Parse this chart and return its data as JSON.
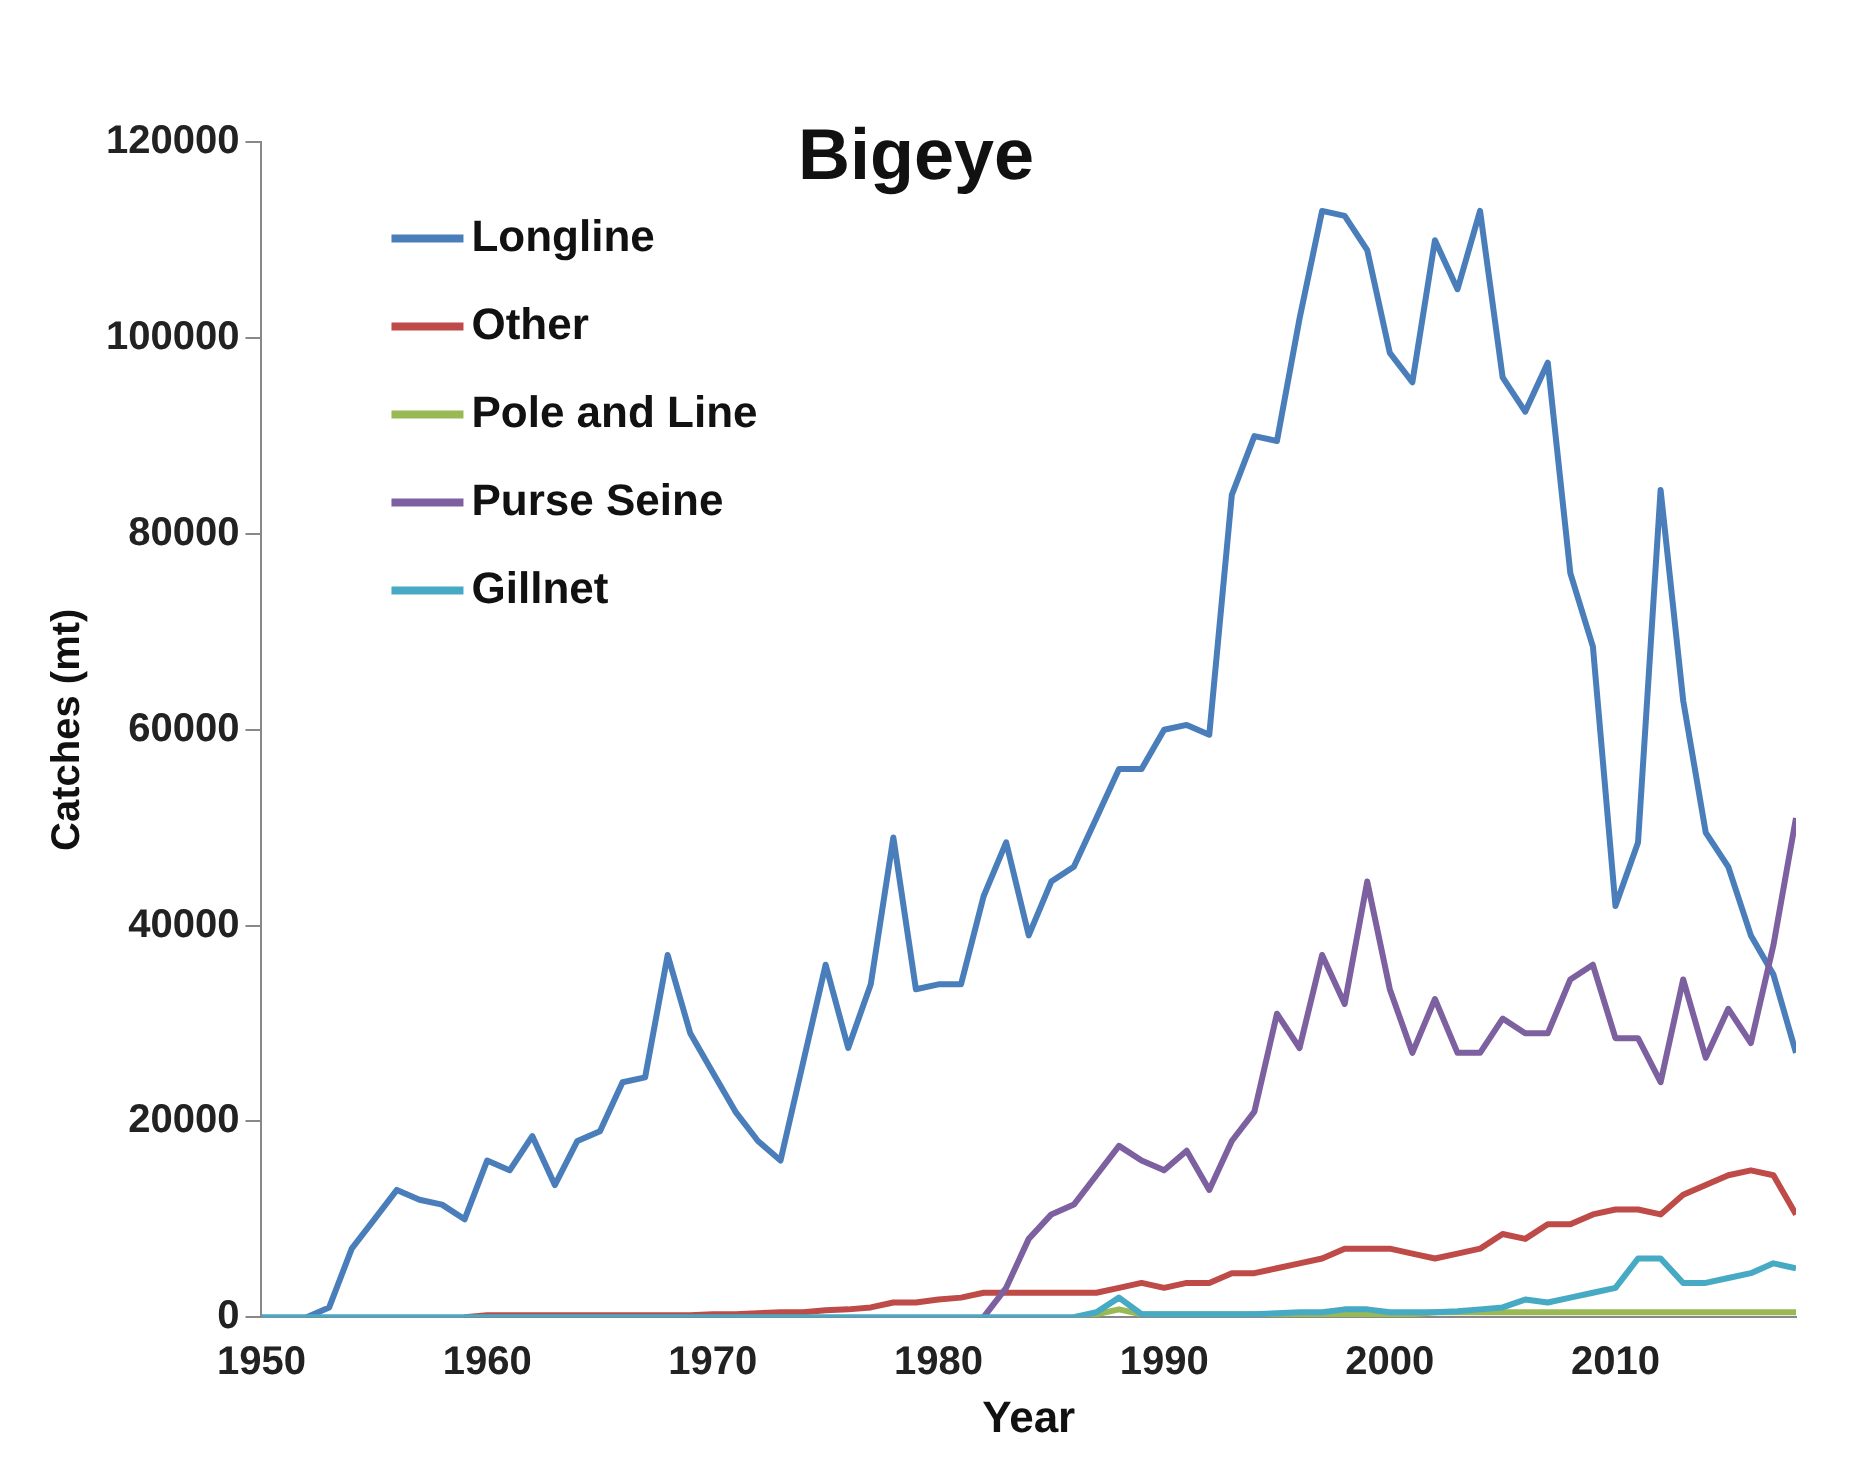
{
  "chart_data": {
    "type": "line",
    "title": "Bigeye",
    "xlabel": "Year",
    "ylabel": "Catches (mt)",
    "x": [
      1950,
      1951,
      1952,
      1953,
      1954,
      1955,
      1956,
      1957,
      1958,
      1959,
      1960,
      1961,
      1962,
      1963,
      1964,
      1965,
      1966,
      1967,
      1968,
      1969,
      1970,
      1971,
      1972,
      1973,
      1974,
      1975,
      1976,
      1977,
      1978,
      1979,
      1980,
      1981,
      1982,
      1983,
      1984,
      1985,
      1986,
      1987,
      1988,
      1989,
      1990,
      1991,
      1992,
      1993,
      1994,
      1995,
      1996,
      1997,
      1998,
      1999,
      2000,
      2001,
      2002,
      2003,
      2004,
      2005,
      2006,
      2007,
      2008,
      2009,
      2010,
      2011,
      2012,
      2013,
      2014,
      2015,
      2016,
      2017,
      2018
    ],
    "series": [
      {
        "name": "Longline",
        "color": "#4a7ebb",
        "values": [
          null,
          null,
          0,
          1000,
          7000,
          10000,
          13000,
          12000,
          11500,
          10000,
          16000,
          15000,
          18500,
          13500,
          18000,
          19000,
          24000,
          24500,
          37000,
          29000,
          25000,
          21000,
          18000,
          16000,
          26000,
          36000,
          27500,
          34000,
          49000,
          33500,
          34000,
          34000,
          43000,
          48500,
          39000,
          44500,
          46000,
          51000,
          56000,
          56000,
          60000,
          60500,
          59500,
          84000,
          90000,
          89500,
          102000,
          113000,
          112500,
          109000,
          98500,
          95500,
          110000,
          105000,
          113000,
          96000,
          92500,
          97500,
          76000,
          68500,
          42000,
          48500,
          84500,
          63000,
          49500,
          46000,
          39000,
          35000,
          27000
        ]
      },
      {
        "name": "Other",
        "color": "#be4b48",
        "values": [
          null,
          null,
          null,
          null,
          null,
          null,
          null,
          null,
          null,
          0,
          200,
          200,
          200,
          200,
          200,
          200,
          200,
          200,
          200,
          200,
          300,
          300,
          400,
          500,
          500,
          700,
          800,
          1000,
          1500,
          1500,
          1800,
          2000,
          2500,
          2500,
          2500,
          2500,
          2500,
          2500,
          3000,
          3500,
          3000,
          3500,
          3500,
          4500,
          4500,
          5000,
          5500,
          6000,
          7000,
          7000,
          7000,
          6500,
          6000,
          6500,
          7000,
          8500,
          8000,
          9500,
          9500,
          10500,
          11000,
          11000,
          10500,
          12500,
          13500,
          14500,
          15000,
          14500,
          10500
        ]
      },
      {
        "name": "Pole and Line",
        "color": "#98b954",
        "values": [
          null,
          null,
          null,
          null,
          null,
          null,
          null,
          null,
          null,
          null,
          null,
          null,
          null,
          null,
          null,
          null,
          null,
          null,
          null,
          null,
          null,
          null,
          null,
          null,
          null,
          null,
          null,
          null,
          null,
          null,
          null,
          null,
          null,
          null,
          null,
          null,
          0,
          300,
          800,
          300,
          300,
          300,
          300,
          300,
          300,
          300,
          300,
          300,
          300,
          300,
          300,
          300,
          500,
          500,
          500,
          500,
          500,
          500,
          500,
          500,
          500,
          500,
          500,
          500,
          500,
          500,
          500,
          500,
          500
        ]
      },
      {
        "name": "Purse Seine",
        "color": "#7d60a0",
        "values": [
          null,
          null,
          null,
          null,
          null,
          null,
          null,
          null,
          null,
          null,
          null,
          null,
          null,
          null,
          null,
          null,
          null,
          null,
          null,
          null,
          null,
          null,
          null,
          null,
          null,
          null,
          null,
          null,
          null,
          null,
          null,
          null,
          0,
          3000,
          8000,
          10500,
          11500,
          14500,
          17500,
          16000,
          15000,
          17000,
          13000,
          18000,
          21000,
          31000,
          27500,
          37000,
          32000,
          44500,
          33500,
          27000,
          32500,
          27000,
          27000,
          30500,
          29000,
          29000,
          34500,
          36000,
          28500,
          28500,
          24000,
          34500,
          26500,
          31500,
          28000,
          38000,
          51000
        ]
      },
      {
        "name": "Gillnet",
        "color": "#46aac5",
        "values": [
          0,
          0,
          0,
          0,
          0,
          0,
          0,
          0,
          0,
          0,
          0,
          0,
          0,
          0,
          0,
          0,
          0,
          0,
          0,
          0,
          0,
          0,
          0,
          0,
          0,
          0,
          0,
          0,
          0,
          0,
          0,
          0,
          0,
          0,
          0,
          0,
          0,
          500,
          2000,
          300,
          300,
          300,
          300,
          300,
          300,
          400,
          500,
          500,
          800,
          800,
          500,
          500,
          500,
          600,
          800,
          1000,
          1800,
          1500,
          2000,
          2500,
          3000,
          6000,
          6000,
          3500,
          3500,
          4000,
          4500,
          5500,
          5000
        ]
      }
    ],
    "xlim": [
      1950,
      2018
    ],
    "xticks": [
      1950,
      1960,
      1970,
      1980,
      1990,
      2000,
      2010
    ],
    "ylim": [
      0,
      120000
    ],
    "yticks": [
      0,
      20000,
      40000,
      60000,
      80000,
      100000,
      120000
    ],
    "grid": false,
    "legend": "top left",
    "marker": "none",
    "line_style": "solid"
  }
}
